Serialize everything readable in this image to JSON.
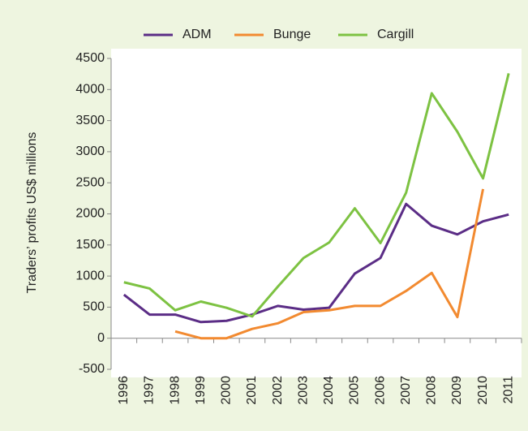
{
  "chart_data": {
    "type": "line",
    "y_label": "Traders’ profits US$ millions",
    "categories": [
      "1996",
      "1997",
      "1998",
      "1999",
      "2000",
      "2001",
      "2002",
      "2003",
      "2004",
      "2005",
      "2006",
      "2007",
      "2008",
      "2009",
      "2010",
      "2011"
    ],
    "series": [
      {
        "name": "ADM",
        "color": "#5b2d86",
        "values": [
          700,
          380,
          380,
          260,
          280,
          380,
          520,
          460,
          490,
          1040,
          1290,
          2160,
          1810,
          1670,
          1880,
          1990
        ]
      },
      {
        "name": "Bunge",
        "color": "#f28a30",
        "values": [
          null,
          null,
          110,
          0,
          0,
          150,
          240,
          420,
          450,
          520,
          520,
          760,
          1050,
          340,
          2400,
          null
        ]
      },
      {
        "name": "Cargill",
        "color": "#7dc242",
        "values": [
          900,
          800,
          450,
          590,
          490,
          350,
          830,
          1290,
          1540,
          2090,
          1530,
          2340,
          3940,
          3320,
          2570,
          4260
        ]
      }
    ],
    "ylim": [
      -500,
      4500
    ],
    "yticks": [
      -500,
      0,
      500,
      1000,
      1500,
      2000,
      2500,
      3000,
      3500,
      4000,
      4500
    ],
    "grid": false,
    "legend": "top"
  }
}
